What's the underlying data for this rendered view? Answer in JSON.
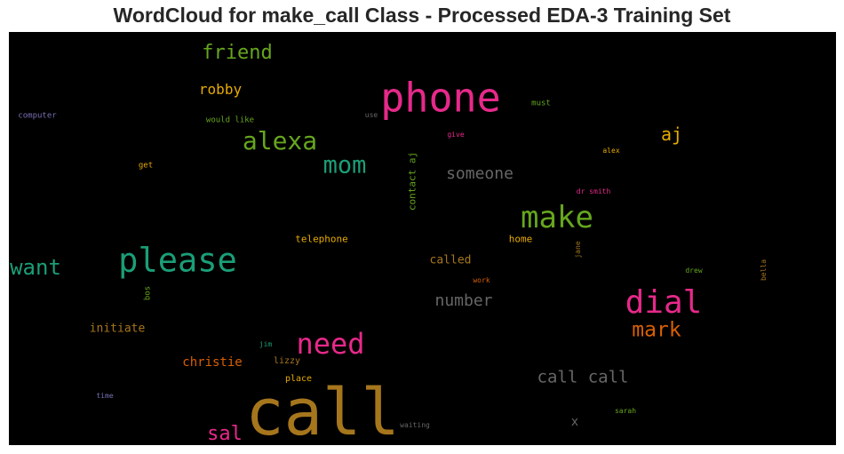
{
  "chart_data": {
    "type": "wordcloud",
    "title": "WordCloud for make_call Class - Processed EDA-3 Training Set",
    "background": "#000000",
    "words": [
      {
        "text": "call",
        "weight": 1.0,
        "color": "#a6761d"
      },
      {
        "text": "phone",
        "weight": 0.62,
        "color": "#e7298a"
      },
      {
        "text": "please",
        "weight": 0.52,
        "color": "#1b9e77"
      },
      {
        "text": "dial",
        "weight": 0.5,
        "color": "#e7298a"
      },
      {
        "text": "make",
        "weight": 0.47,
        "color": "#66a61e"
      },
      {
        "text": "need",
        "weight": 0.45,
        "color": "#e7298a"
      },
      {
        "text": "alexa",
        "weight": 0.39,
        "color": "#66a61e"
      },
      {
        "text": "mom",
        "weight": 0.37,
        "color": "#1b9e77"
      },
      {
        "text": "want",
        "weight": 0.33,
        "color": "#1b9e77"
      },
      {
        "text": "mark",
        "weight": 0.32,
        "color": "#d95f02"
      },
      {
        "text": "friend",
        "weight": 0.3,
        "color": "#66a61e"
      },
      {
        "text": "sal",
        "weight": 0.3,
        "color": "#e7298a"
      },
      {
        "text": "aj",
        "weight": 0.28,
        "color": "#e6ab02"
      },
      {
        "text": "call call",
        "weight": 0.27,
        "color": "#666666"
      },
      {
        "text": "someone",
        "weight": 0.25,
        "color": "#666666"
      },
      {
        "text": "number",
        "weight": 0.25,
        "color": "#666666"
      },
      {
        "text": "robby",
        "weight": 0.22,
        "color": "#e6ab02"
      },
      {
        "text": "x",
        "weight": 0.2,
        "color": "#666666"
      },
      {
        "text": "christie",
        "weight": 0.19,
        "color": "#d95f02"
      },
      {
        "text": "initiate",
        "weight": 0.18,
        "color": "#a6761d"
      },
      {
        "text": "called",
        "weight": 0.18,
        "color": "#a6761d"
      },
      {
        "text": "contact aj",
        "weight": 0.15,
        "color": "#66a61e",
        "vertical": true
      },
      {
        "text": "telephone",
        "weight": 0.15,
        "color": "#e6ab02"
      },
      {
        "text": "home",
        "weight": 0.15,
        "color": "#e6ab02"
      },
      {
        "text": "lizzy",
        "weight": 0.14,
        "color": "#a6761d"
      },
      {
        "text": "place",
        "weight": 0.14,
        "color": "#e6ab02"
      },
      {
        "text": "computer",
        "weight": 0.13,
        "color": "#7570b3"
      },
      {
        "text": "would like",
        "weight": 0.13,
        "color": "#66a61e"
      },
      {
        "text": "get",
        "weight": 0.13,
        "color": "#e6ab02"
      },
      {
        "text": "must",
        "weight": 0.13,
        "color": "#66a61e"
      },
      {
        "text": "bos",
        "weight": 0.13,
        "color": "#66a61e",
        "vertical": true
      },
      {
        "text": "use",
        "weight": 0.09,
        "color": "#666666"
      },
      {
        "text": "give",
        "weight": 0.09,
        "color": "#e7298a"
      },
      {
        "text": "alex",
        "weight": 0.09,
        "color": "#e6ab02"
      },
      {
        "text": "dr smith",
        "weight": 0.09,
        "color": "#e7298a"
      },
      {
        "text": "jane",
        "weight": 0.08,
        "color": "#a6761d",
        "vertical": true
      },
      {
        "text": "work",
        "weight": 0.08,
        "color": "#d95f02"
      },
      {
        "text": "drew",
        "weight": 0.08,
        "color": "#66a61e"
      },
      {
        "text": "bella",
        "weight": 0.08,
        "color": "#a6761d",
        "vertical": true
      },
      {
        "text": "jim",
        "weight": 0.08,
        "color": "#1b9e77"
      },
      {
        "text": "time",
        "weight": 0.08,
        "color": "#7570b3"
      },
      {
        "text": "waiting",
        "weight": 0.09,
        "color": "#666666"
      },
      {
        "text": "sarah",
        "weight": 0.09,
        "color": "#66a61e"
      }
    ]
  }
}
